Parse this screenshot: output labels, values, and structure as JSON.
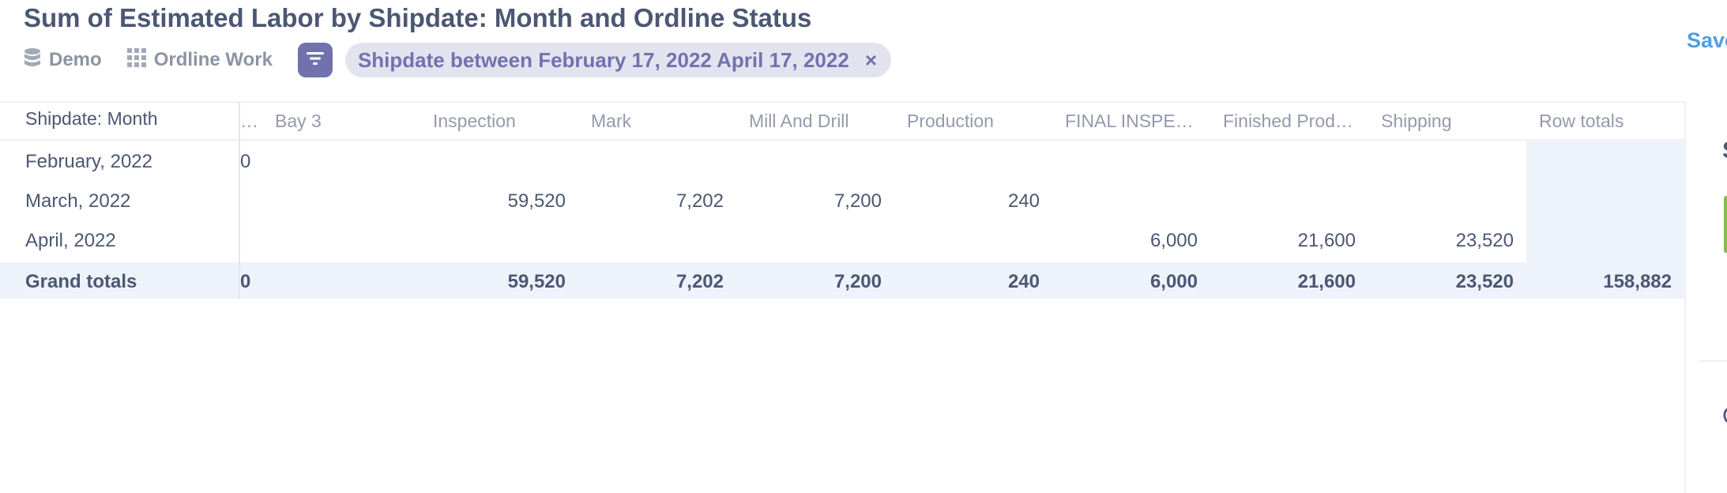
{
  "header": {
    "title": "Sum of Estimated Labor by Shipdate: Month and Ordline Status",
    "database": "Demo",
    "table": "Ordline Work",
    "filter_label": "Shipdate between February 17, 2022 April 17, 2022",
    "filter_remove": "×",
    "save_label": "Save"
  },
  "table": {
    "row_header": "Shipdate: Month",
    "columns": [
      "…",
      "Bay 3",
      "Inspection",
      "Mark",
      "Mill And Drill",
      "Production",
      "FINAL INSPE…",
      "Finished Prod…",
      "Shipping",
      "Row totals"
    ],
    "rows": [
      {
        "label": "February, 2022",
        "first": "0",
        "values": [
          "",
          "",
          "",
          "",
          "",
          "",
          "",
          "",
          ""
        ]
      },
      {
        "label": "March, 2022",
        "first": "",
        "values": [
          "",
          "59,520",
          "7,202",
          "7,200",
          "240",
          "",
          "",
          "",
          ""
        ]
      },
      {
        "label": "April, 2022",
        "first": "",
        "values": [
          "",
          "",
          "",
          "",
          "",
          "6,000",
          "21,600",
          "23,520",
          ""
        ]
      }
    ],
    "totals": {
      "label": "Grand totals",
      "first": "0",
      "values": [
        "",
        "59,520",
        "7,202",
        "7,200",
        "240",
        "6,000",
        "21,600",
        "23,520",
        "158,882"
      ]
    }
  },
  "sidebar_edge": {
    "letter_top": "S",
    "letter_bottom": "C"
  },
  "colors": {
    "accent": "#7172ad",
    "link": "#509ee3",
    "text": "#4c5773",
    "muted": "#949aab",
    "highlight": "#eef3fb"
  }
}
